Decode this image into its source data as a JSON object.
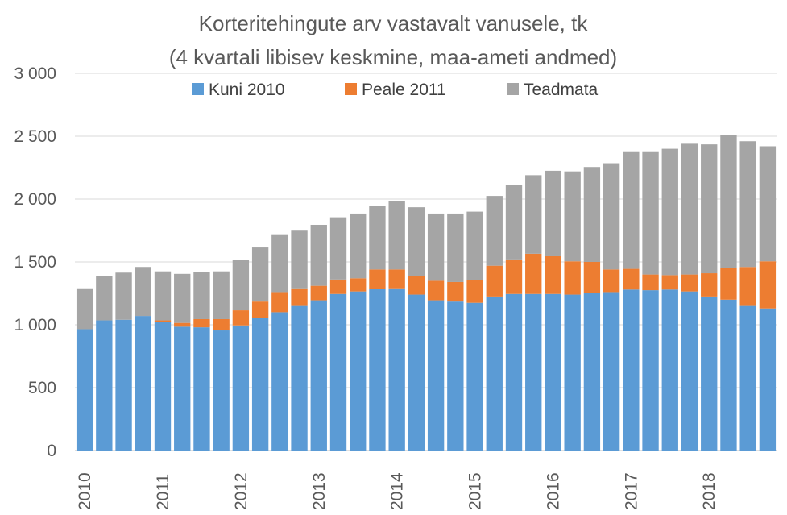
{
  "chart_data": {
    "type": "bar",
    "stacked": true,
    "title": "Korteritehingute arv vastavalt vanusele, tk",
    "subtitle": "(4 kvartali libisev keskmine, maa-ameti andmed)",
    "xlabel": "",
    "ylabel": "",
    "ylim": [
      0,
      3000
    ],
    "yticks": [
      0,
      500,
      1000,
      1500,
      2000,
      2500,
      3000
    ],
    "ytick_labels": [
      "0",
      "500",
      "1 000",
      "1 500",
      "2 000",
      "2 500",
      "3 000"
    ],
    "grid": true,
    "legend_position": "top",
    "year_labels": [
      {
        "label": "2010",
        "start_index": 0
      },
      {
        "label": "2011",
        "start_index": 4
      },
      {
        "label": "2012",
        "start_index": 8
      },
      {
        "label": "2013",
        "start_index": 12
      },
      {
        "label": "2014",
        "start_index": 16
      },
      {
        "label": "2015",
        "start_index": 20
      },
      {
        "label": "2016",
        "start_index": 24
      },
      {
        "label": "2017",
        "start_index": 28
      },
      {
        "label": "2018",
        "start_index": 32
      }
    ],
    "series": [
      {
        "name": "Kuni 2010",
        "color": "#5b9bd5",
        "values": [
          965,
          1035,
          1040,
          1070,
          1020,
          985,
          980,
          955,
          995,
          1055,
          1100,
          1150,
          1195,
          1245,
          1265,
          1285,
          1290,
          1240,
          1195,
          1185,
          1175,
          1225,
          1245,
          1245,
          1245,
          1240,
          1255,
          1260,
          1280,
          1275,
          1280,
          1265,
          1225,
          1200,
          1150,
          1130
        ]
      },
      {
        "name": "Peale 2011",
        "color": "#ed7d31",
        "values": [
          0,
          0,
          0,
          0,
          15,
          30,
          65,
          90,
          120,
          130,
          160,
          140,
          115,
          115,
          105,
          155,
          150,
          150,
          155,
          155,
          180,
          245,
          275,
          320,
          300,
          265,
          245,
          180,
          165,
          125,
          115,
          135,
          185,
          255,
          310,
          375
        ]
      },
      {
        "name": "Teadmata",
        "color": "#a5a5a5",
        "values": [
          325,
          350,
          375,
          390,
          390,
          390,
          375,
          380,
          400,
          430,
          460,
          465,
          485,
          495,
          515,
          505,
          545,
          545,
          535,
          545,
          545,
          555,
          590,
          625,
          680,
          715,
          755,
          845,
          935,
          980,
          1005,
          1040,
          1025,
          1055,
          1000,
          915
        ]
      }
    ]
  }
}
